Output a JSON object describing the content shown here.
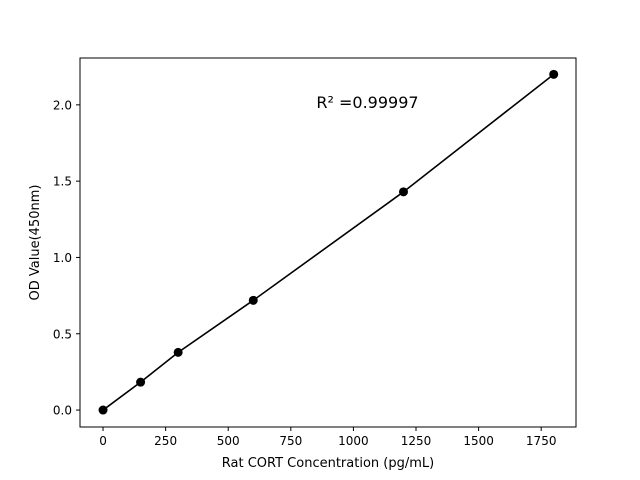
{
  "chart_data": {
    "type": "scatter",
    "title": "",
    "xlabel": "Rat CORT Concentration (pg/mL)",
    "ylabel": "OD Value(450nm)",
    "xlim": [
      -92,
      1889
    ],
    "ylim": [
      -0.111,
      2.307
    ],
    "xticks": [
      0,
      250,
      500,
      750,
      1000,
      1250,
      1500,
      1750
    ],
    "yticks": [
      0.0,
      0.5,
      1.0,
      1.5,
      2.0
    ],
    "xtick_labels": [
      "0",
      "250",
      "500",
      "750",
      "1000",
      "1250",
      "1500",
      "1750"
    ],
    "ytick_labels": [
      "0.0",
      "0.5",
      "1.0",
      "1.5",
      "2.0"
    ],
    "grid": false,
    "series": [
      {
        "x": [
          0,
          150,
          300,
          600,
          1200,
          1800
        ],
        "y": [
          0.0,
          0.183,
          0.378,
          0.719,
          1.43,
          2.2
        ],
        "color": "#000000",
        "markers": true,
        "line": true
      }
    ],
    "annotations": [
      {
        "text": "R² =0.99997",
        "x": 900,
        "y": 2.0
      }
    ]
  }
}
